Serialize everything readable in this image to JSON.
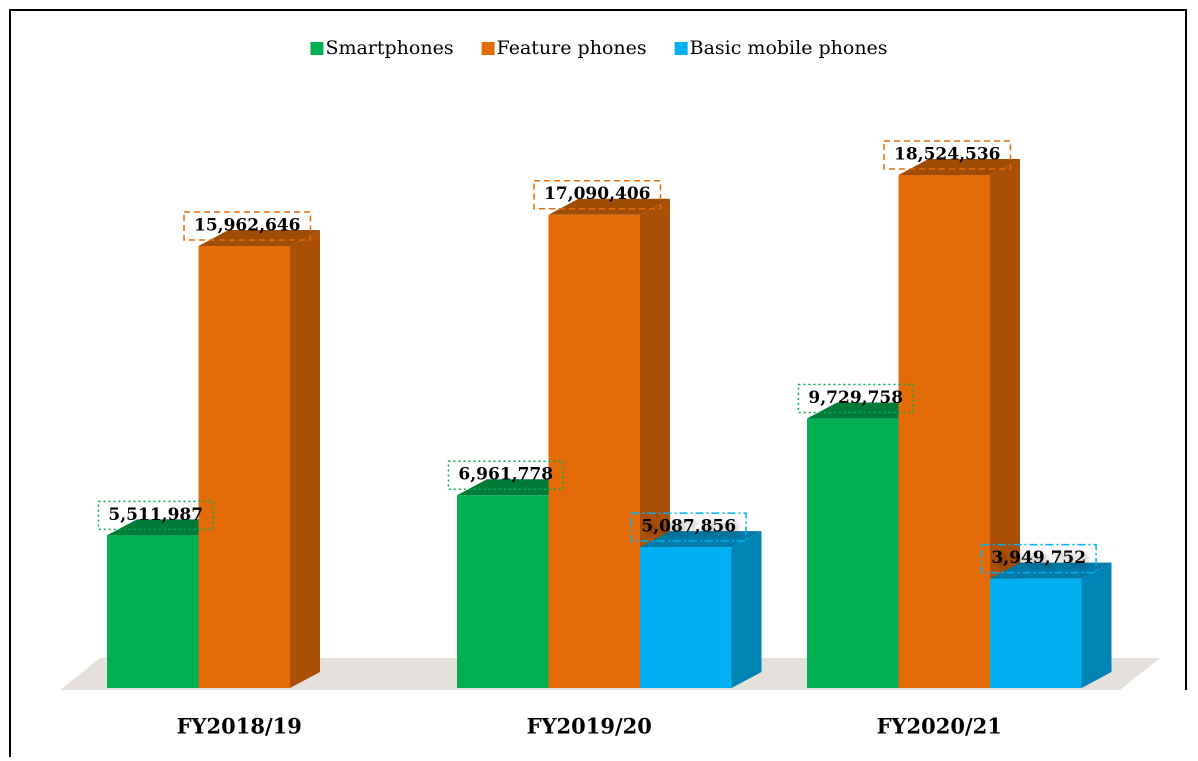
{
  "chart_data": {
    "type": "bar3d",
    "categories": [
      "FY2018/19",
      "FY2019/20",
      "FY2020/21"
    ],
    "series": [
      {
        "name": "Smartphones",
        "color": "#00b050",
        "values": [
          5511987,
          6961778,
          9729758
        ],
        "value_labels": [
          "5,511,987",
          "6,961,778",
          "9,729,758"
        ]
      },
      {
        "name": "Feature phones",
        "color": "#e36c09",
        "values": [
          15962646,
          17090406,
          18524536
        ],
        "value_labels": [
          "15,962,646",
          "17,090,406",
          "18,524,536"
        ]
      },
      {
        "name": "Basic mobile phones",
        "color": "#00b0f0",
        "values": [
          null,
          5087856,
          3949752
        ],
        "value_labels": [
          null,
          "5,087,856",
          "3,949,752"
        ]
      }
    ],
    "legend": "top"
  }
}
